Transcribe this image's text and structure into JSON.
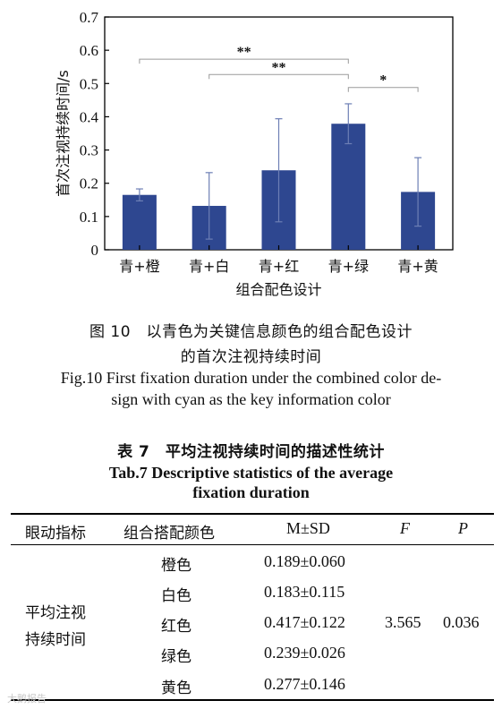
{
  "chart_data": {
    "type": "bar",
    "categories": [
      "青+橙",
      "青+白",
      "青+红",
      "青+绿",
      "青+黄"
    ],
    "values": [
      0.165,
      0.132,
      0.239,
      0.379,
      0.174
    ],
    "errors": [
      0.018,
      0.1,
      0.155,
      0.06,
      0.103
    ],
    "ylabel": "首次注视持续时间/s",
    "xlabel": "组合配色设计",
    "ylim": [
      0,
      0.7
    ],
    "yticks": [
      "0",
      "0.1",
      "0.2",
      "0.3",
      "0.4",
      "0.5",
      "0.6",
      "0.7"
    ],
    "bar_color": "#2e4790",
    "significance": [
      {
        "from": 0,
        "to": 3,
        "label": "**",
        "level": 0.573
      },
      {
        "from": 1,
        "to": 3,
        "label": "**",
        "level": 0.527
      },
      {
        "from": 3,
        "to": 4,
        "label": "*",
        "level": 0.488
      }
    ]
  },
  "figure": {
    "caption_cn_line1": "图 10　以青色为关键信息颜色的组合配色设计",
    "caption_cn_line2": "的首次注视持续时间",
    "caption_en_line1": "Fig.10 First fixation duration under the combined color de-",
    "caption_en_line2": "sign with cyan as the key information color"
  },
  "table": {
    "title_cn": "表 7　平均注视持续时间的描述性统计",
    "title_en_line1": "Tab.7 Descriptive statistics of the average",
    "title_en_line2": "fixation duration",
    "headers": [
      "眼动指标",
      "组合搭配颜色",
      "M±SD",
      "F",
      "P"
    ],
    "metric_line1": "平均注视",
    "metric_line2": "持续时间",
    "rows": [
      {
        "color": "橙色",
        "msd": "0.189±0.060"
      },
      {
        "color": "白色",
        "msd": "0.183±0.115"
      },
      {
        "color": "红色",
        "msd": "0.417±0.122"
      },
      {
        "color": "绿色",
        "msd": "0.239±0.026"
      },
      {
        "color": "黄色",
        "msd": "0.277±0.146"
      }
    ],
    "f_value": "3.565",
    "p_value": "0.036"
  },
  "watermark": "大鹅报告"
}
